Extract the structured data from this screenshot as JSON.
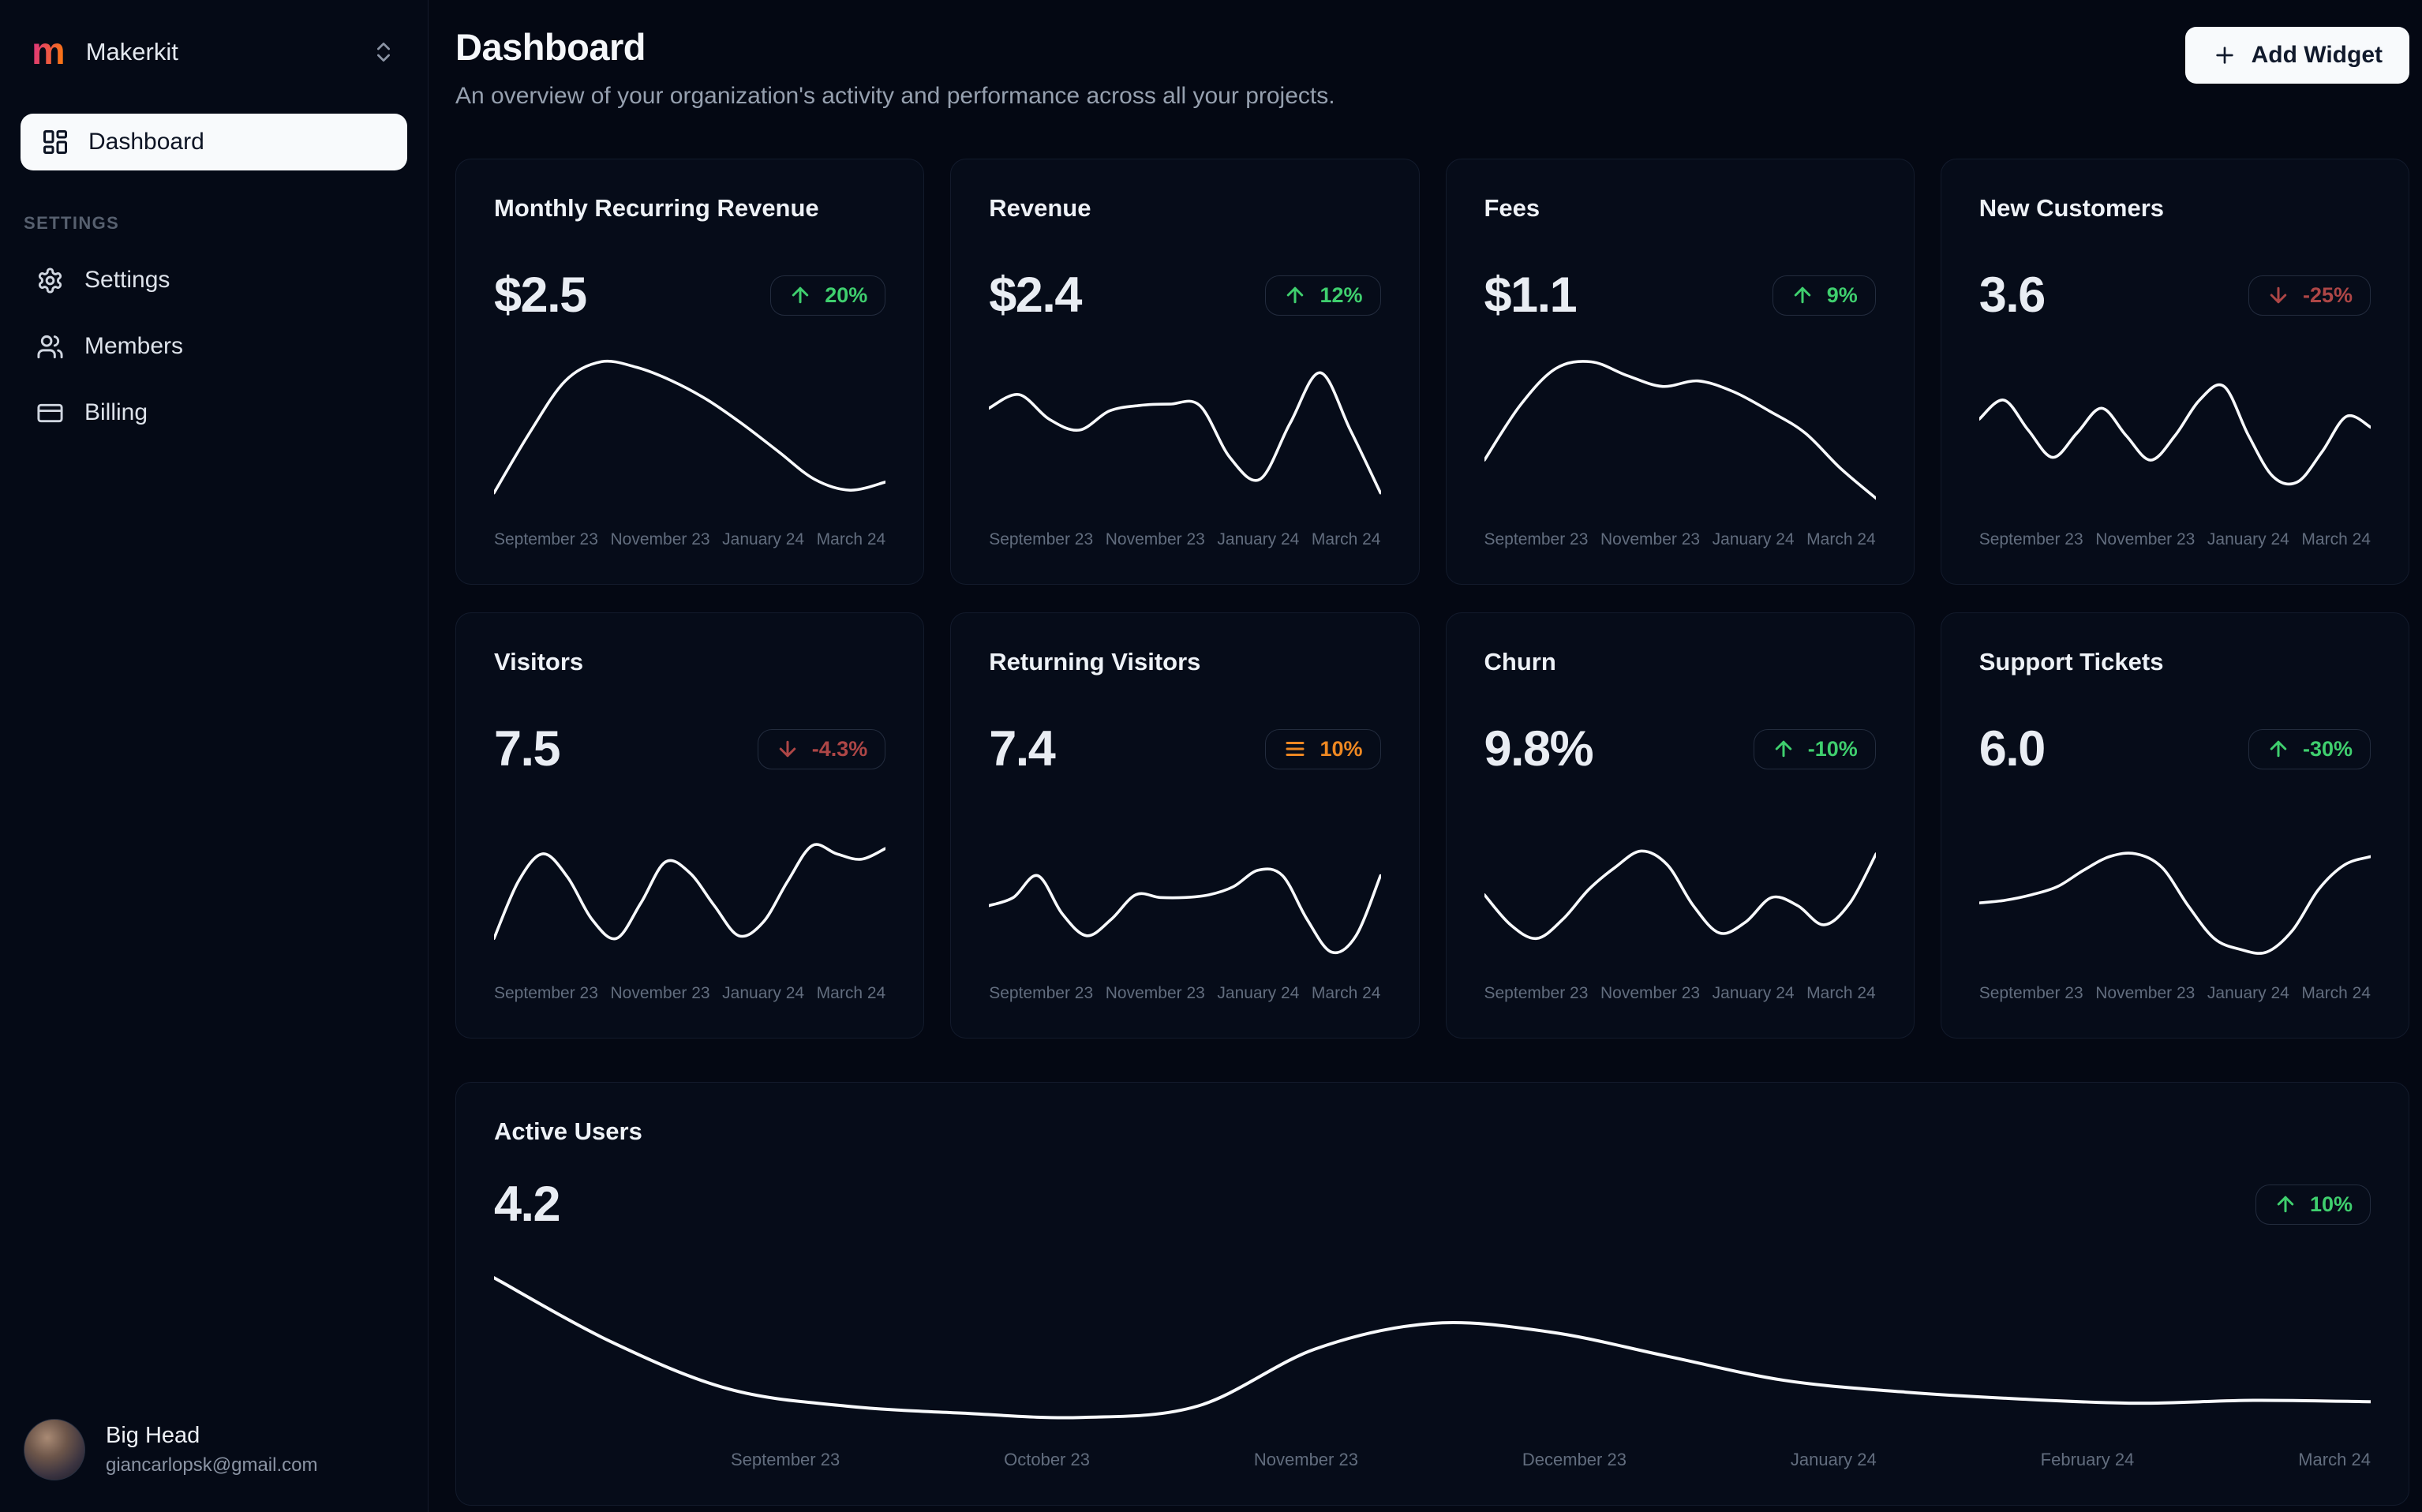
{
  "sidebar": {
    "workspace": {
      "name": "Makerkit",
      "logo_letter": "m"
    },
    "items": [
      {
        "label": "Dashboard",
        "active": true
      }
    ],
    "section_label": "SETTINGS",
    "settings_items": [
      {
        "label": "Settings"
      },
      {
        "label": "Members"
      },
      {
        "label": "Billing"
      }
    ],
    "user": {
      "name": "Big Head",
      "email": "giancarlopsk@gmail.com"
    }
  },
  "header": {
    "title": "Dashboard",
    "subtitle": "An overview of your organization's activity and performance across all your projects.",
    "add_widget_label": "Add Widget"
  },
  "colors": {
    "trend_up": "#3fcf6e",
    "trend_down": "#ad4646",
    "trend_flat": "#ee8822",
    "line": "#f8fafc"
  },
  "x_labels_quarterly": [
    "September 23",
    "November 23",
    "January 24",
    "March 24"
  ],
  "cards": [
    {
      "title": "Monthly Recurring Revenue",
      "value": "$2.5",
      "delta": "20%",
      "trend": "up",
      "spark_values": [
        4,
        48,
        86,
        100,
        96,
        86,
        72,
        54,
        34,
        14,
        6,
        12
      ]
    },
    {
      "title": "Revenue",
      "value": "$2.4",
      "delta": "12%",
      "trend": "up",
      "spark_values": [
        66,
        76,
        58,
        50,
        64,
        68,
        69,
        68,
        30,
        14,
        55,
        92,
        50,
        4
      ]
    },
    {
      "title": "Fees",
      "value": "$1.1",
      "delta": "9%",
      "trend": "up",
      "spark_values": [
        28,
        68,
        95,
        100,
        90,
        82,
        86,
        78,
        64,
        48,
        22,
        0
      ]
    },
    {
      "title": "New Customers",
      "value": "3.6",
      "delta": "-25%",
      "trend": "down",
      "spark_values": [
        58,
        72,
        50,
        30,
        48,
        66,
        46,
        28,
        46,
        72,
        82,
        46,
        16,
        12,
        34,
        60,
        52
      ]
    },
    {
      "title": "Visitors",
      "value": "7.5",
      "delta": "-4.3%",
      "trend": "down",
      "spark_values": [
        10,
        52,
        72,
        55,
        24,
        10,
        36,
        66,
        58,
        34,
        12,
        22,
        52,
        78,
        72,
        68,
        76
      ]
    },
    {
      "title": "Returning Visitors",
      "value": "7.4",
      "delta": "10%",
      "trend": "flat",
      "spark_values": [
        34,
        40,
        56,
        28,
        12,
        24,
        42,
        40,
        40,
        42,
        48,
        60,
        56,
        24,
        0,
        12,
        56
      ]
    },
    {
      "title": "Churn",
      "value": "9.8%",
      "delta": "-10%",
      "trend": "up",
      "spark_values": [
        42,
        20,
        10,
        24,
        46,
        62,
        74,
        64,
        34,
        14,
        22,
        40,
        34,
        20,
        36,
        72
      ]
    },
    {
      "title": "Support Tickets",
      "value": "6.0",
      "delta": "-30%",
      "trend": "up",
      "spark_values": [
        36,
        38,
        42,
        48,
        60,
        70,
        72,
        62,
        34,
        10,
        2,
        0,
        16,
        46,
        64,
        70
      ]
    }
  ],
  "active_users": {
    "title": "Active Users",
    "value": "4.2",
    "delta": "10%",
    "trend": "up",
    "x_labels": [
      "September 23",
      "October 23",
      "November 23",
      "December 23",
      "January 24",
      "February 24",
      "March 24"
    ],
    "spark_values": [
      100,
      55,
      22,
      10,
      5,
      2,
      10,
      50,
      68,
      62,
      45,
      28,
      20,
      15,
      12,
      14,
      13
    ]
  }
}
